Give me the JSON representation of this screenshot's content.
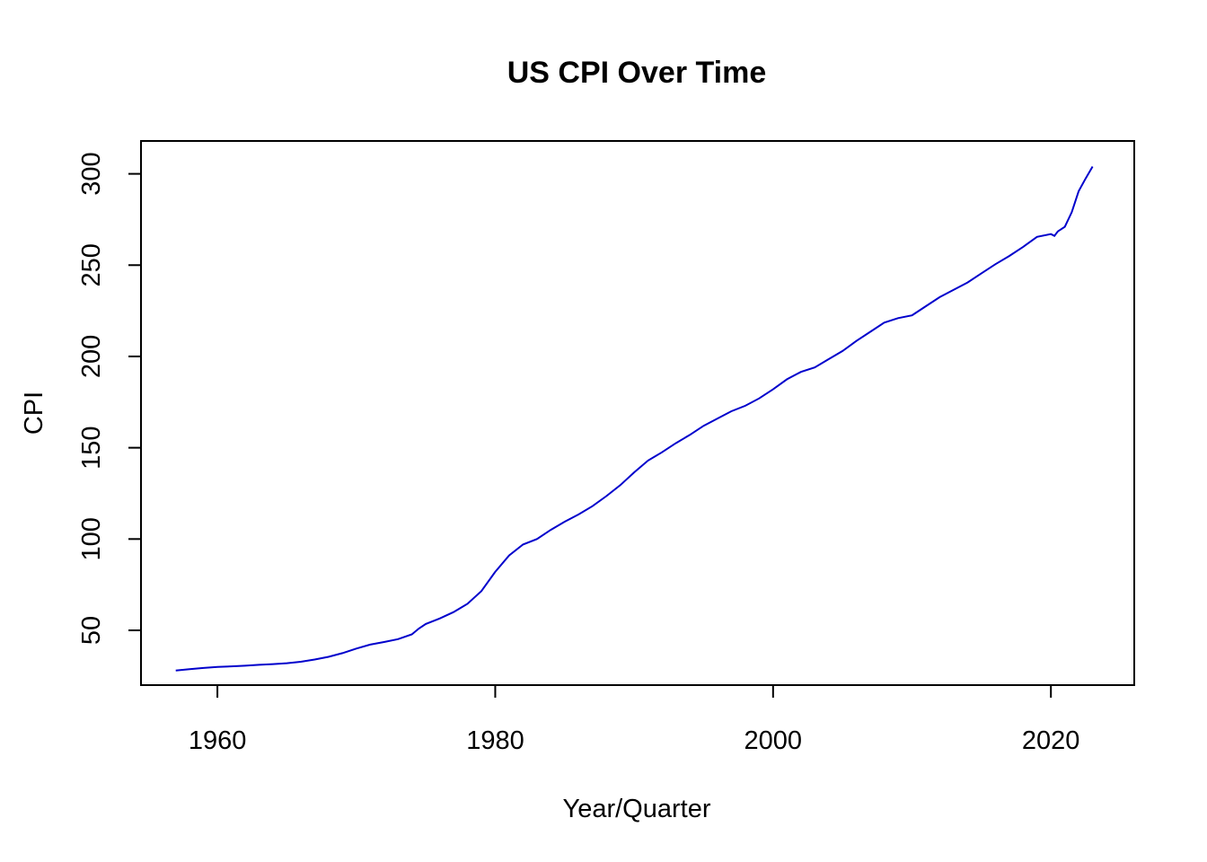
{
  "chart_data": {
    "type": "line",
    "title": "US CPI Over Time",
    "xlabel": "Year/Quarter",
    "ylabel": "CPI",
    "xlim": [
      1954.5,
      2026.0
    ],
    "ylim": [
      20.0,
      318.0
    ],
    "x_ticks": [
      1960,
      1980,
      2000,
      2020
    ],
    "y_ticks": [
      50,
      100,
      150,
      200,
      250,
      300
    ],
    "grid": false,
    "line_color": "#0000cc",
    "series": [
      {
        "x": [
          1957.0,
          1958.0,
          1959.0,
          1960.0,
          1961.0,
          1962.0,
          1963.0,
          1964.0,
          1965.0,
          1966.0,
          1967.0,
          1968.0,
          1969.0,
          1970.0,
          1971.0,
          1972.0,
          1973.0,
          1974.0,
          1974.5,
          1975.0,
          1976.0,
          1977.0,
          1978.0,
          1979.0,
          1980.0,
          1981.0,
          1982.0,
          1983.0,
          1984.0,
          1985.0,
          1986.0,
          1987.0,
          1988.0,
          1989.0,
          1990.0,
          1991.0,
          1992.0,
          1993.0,
          1994.0,
          1995.0,
          1996.0,
          1997.0,
          1998.0,
          1999.0,
          2000.0,
          2001.0,
          2002.0,
          2003.0,
          2004.0,
          2005.0,
          2006.0,
          2007.0,
          2008.0,
          2009.0,
          2010.0,
          2011.0,
          2012.0,
          2013.0,
          2014.0,
          2015.0,
          2016.0,
          2017.0,
          2018.0,
          2019.0,
          2020.0,
          2020.25,
          2020.5,
          2021.0,
          2021.5,
          2022.0,
          2022.5,
          2023.0
        ],
        "values": [
          28.0,
          28.7,
          29.4,
          30.0,
          30.3,
          30.6,
          31.1,
          31.5,
          32.0,
          32.8,
          34.0,
          35.5,
          37.5,
          40.0,
          42.2,
          43.6,
          45.2,
          47.8,
          51.0,
          53.5,
          56.5,
          60.0,
          64.5,
          71.5,
          82.0,
          91.0,
          97.0,
          100.0,
          105.0,
          109.5,
          113.5,
          118.0,
          123.5,
          129.5,
          136.5,
          143.0,
          147.5,
          152.5,
          157.0,
          162.0,
          166.0,
          170.0,
          173.0,
          177.0,
          182.0,
          187.5,
          191.5,
          194.0,
          198.5,
          203.0,
          208.5,
          213.5,
          218.5,
          221.0,
          222.5,
          227.5,
          232.5,
          236.5,
          240.5,
          245.5,
          250.5,
          255.0,
          260.0,
          265.5,
          267.0,
          266.0,
          268.5,
          271.0,
          279.0,
          290.5,
          297.5,
          304.0
        ]
      }
    ]
  }
}
